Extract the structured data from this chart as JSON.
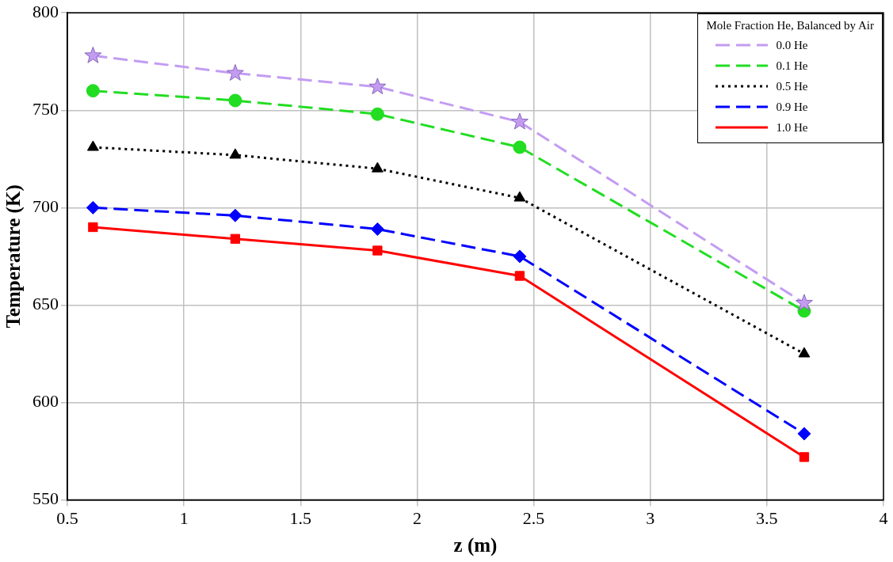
{
  "chart_data": {
    "type": "line",
    "xlabel": "z (m)",
    "ylabel": "Temperature (K)",
    "legend_title": "Mole Fraction He, Balanced by Air",
    "x": [
      0.61,
      1.22,
      1.83,
      2.44,
      3.66
    ],
    "xlim": [
      0.5,
      4
    ],
    "xticks": [
      0.5,
      1,
      1.5,
      2,
      2.5,
      3,
      3.5,
      4
    ],
    "ylim": [
      550,
      800
    ],
    "yticks": [
      550,
      600,
      650,
      700,
      750,
      800
    ],
    "grid": true,
    "legend": "top right",
    "series": [
      {
        "name": "0.0 He",
        "color": "#c39cf2",
        "values": [
          778,
          769,
          762,
          744,
          651
        ],
        "marker": "star",
        "line_style": "dashed"
      },
      {
        "name": "0.1 He",
        "color": "#22dd22",
        "values": [
          760,
          755,
          748,
          731,
          647
        ],
        "marker": "circle",
        "line_style": "dashed"
      },
      {
        "name": "0.5 He",
        "color": "#000000",
        "values": [
          731,
          727,
          720,
          705,
          625
        ],
        "marker": "triangle",
        "line_style": "dotted"
      },
      {
        "name": "0.9 He",
        "color": "#0000ff",
        "values": [
          700,
          696,
          689,
          675,
          584
        ],
        "marker": "diamond",
        "line_style": "dashed"
      },
      {
        "name": "1.0 He",
        "color": "#ff0000",
        "values": [
          690,
          684,
          678,
          665,
          572
        ],
        "marker": "square",
        "line_style": "solid"
      }
    ]
  }
}
